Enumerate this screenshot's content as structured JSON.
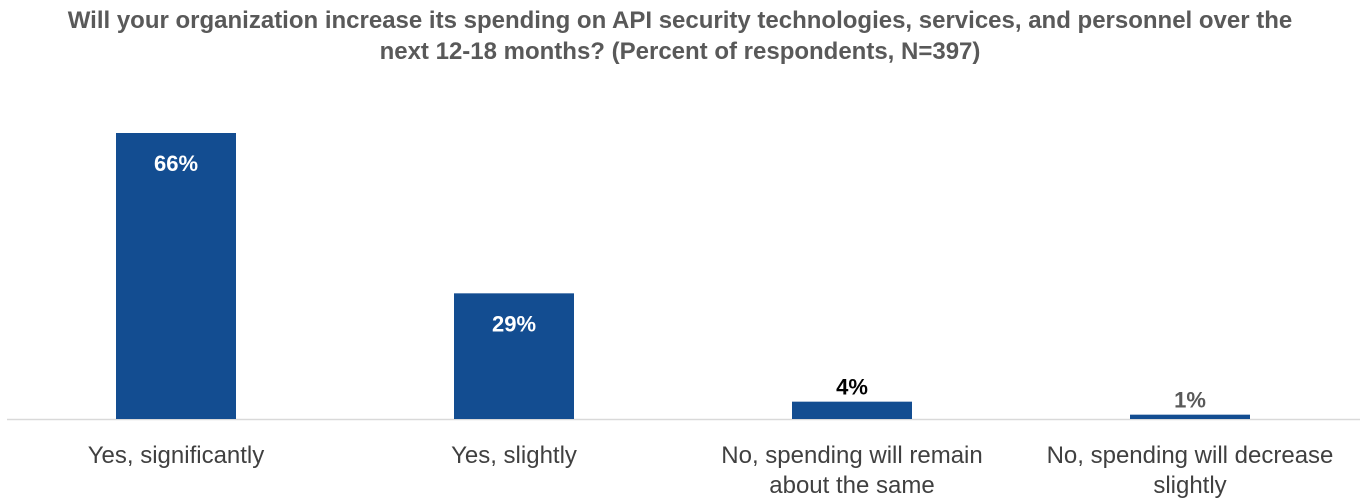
{
  "chart_data": {
    "type": "bar",
    "title": "Will your organization increase its spending on API security technologies, services, and personnel over the next 12-18 months? (Percent of respondents, N=397)",
    "categories": [
      "Yes, significantly",
      "Yes, slightly",
      "No, spending will remain about the same",
      "No, spending will decrease slightly"
    ],
    "values": [
      66,
      29,
      4,
      1
    ],
    "value_labels": [
      "66%",
      "29%",
      "4%",
      "1%"
    ],
    "value_unit": "%",
    "xlabel": "",
    "ylabel": "",
    "ylim": [
      0,
      66
    ],
    "grid": false,
    "legend": "none",
    "colors": {
      "bar": "#134d91",
      "title": "#595959",
      "axis": "#d9d9d9",
      "label_inside": "#ffffff",
      "label_outside_dark": "#000000",
      "label_outside_light": "#595959",
      "tick_label": "#404040"
    }
  }
}
